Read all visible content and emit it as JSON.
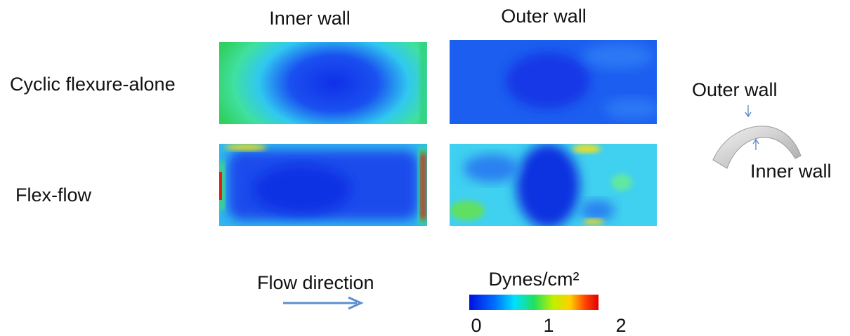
{
  "columns": [
    "Inner wall",
    "Outer wall"
  ],
  "rows": [
    "Cyclic flexure-alone",
    "Flex-flow"
  ],
  "inset": {
    "outer_label": "Outer wall",
    "inner_label": "Inner wall"
  },
  "flow_label": "Flow direction",
  "colorbar": {
    "label": "Dynes/cm²",
    "ticks": [
      0,
      1,
      2
    ]
  }
}
